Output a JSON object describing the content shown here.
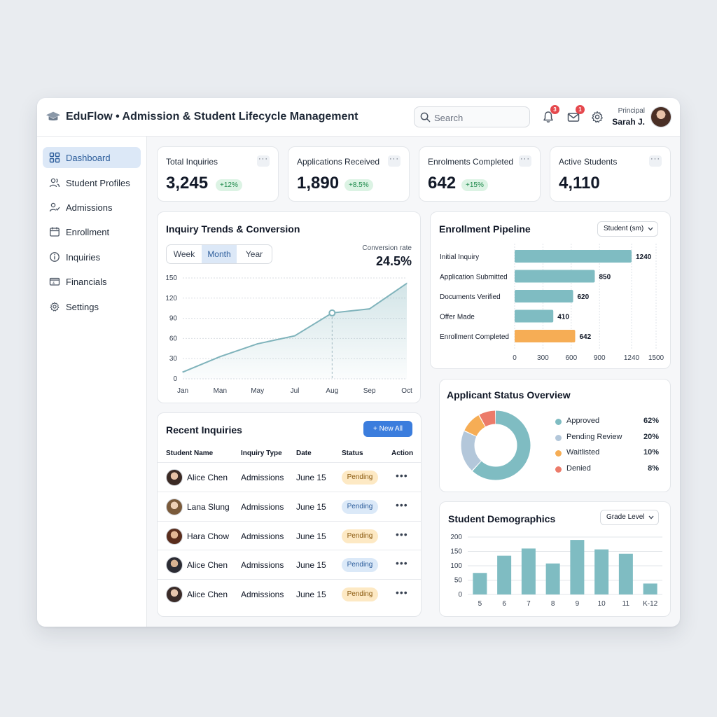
{
  "header": {
    "title": "EduFlow • Admission & Student Lifecycle Management",
    "search_placeholder": "Search",
    "notifications_count": "3",
    "messages_count": "1",
    "user_role": "Principal",
    "user_name": "Sarah J."
  },
  "sidebar": {
    "items": [
      {
        "label": "Dashboard",
        "icon": "grid-icon"
      },
      {
        "label": "Student Profiles",
        "icon": "users-icon"
      },
      {
        "label": "Admissions",
        "icon": "user-check-icon"
      },
      {
        "label": "Enrollment",
        "icon": "calendar-icon"
      },
      {
        "label": "Inquiries",
        "icon": "info-icon"
      },
      {
        "label": "Financials",
        "icon": "wallet-icon"
      },
      {
        "label": "Settings",
        "icon": "gear-icon"
      }
    ]
  },
  "kpis": [
    {
      "label": "Total Inquiries",
      "value": "3,245",
      "delta": "+12%"
    },
    {
      "label": "Applications Received",
      "value": "1,890",
      "delta": "+8.5%"
    },
    {
      "label": "Enrolments Completed",
      "value": "642",
      "delta": "+15%"
    },
    {
      "label": "Active Students",
      "value": "4,110",
      "delta": ""
    }
  ],
  "trends": {
    "title": "Inquiry Trends & Conversion",
    "tabs": [
      "Week",
      "Month",
      "Year"
    ],
    "active_tab": "Month",
    "conversion_label": "Conversion rate",
    "conversion_value": "24.5%"
  },
  "pipeline": {
    "title": "Enrollment Pipeline",
    "filter": "Student (sm)"
  },
  "status": {
    "title": "Applicant Status Overview"
  },
  "demographics": {
    "title": "Student Demographics",
    "filter": "Grade Level"
  },
  "inquiries": {
    "title": "Recent Inquiries",
    "new_button": "+ New All",
    "columns": [
      "Student Name",
      "Inquiry Type",
      "Date",
      "Status",
      "Action"
    ],
    "rows": [
      {
        "name": "Alice Chen",
        "type": "Admissions",
        "date": "June 15",
        "status": "Pending",
        "tone": "y"
      },
      {
        "name": "Lana Slung",
        "type": "Admissions",
        "date": "June 15",
        "status": "Pending",
        "tone": "b"
      },
      {
        "name": "Hara Chow",
        "type": "Admissions",
        "date": "June 15",
        "status": "Pending",
        "tone": "y"
      },
      {
        "name": "Alice Chen",
        "type": "Admissions",
        "date": "June 15",
        "status": "Pending",
        "tone": "b"
      },
      {
        "name": "Alice Chen",
        "type": "Admissions",
        "date": "June 15",
        "status": "Pending",
        "tone": "y"
      }
    ],
    "action_glyph": "•••"
  },
  "colors": {
    "accent": "#3b7ddd",
    "teal": "#7fbcc2",
    "pale_blue": "#b3c7da",
    "orange": "#f6ad55",
    "coral": "#ec7b6a",
    "line": "#7fb3bb"
  },
  "chart_data": [
    {
      "type": "area",
      "title": "Inquiry Trends & Conversion",
      "x": [
        "Jan",
        "Man",
        "May",
        "Jul",
        "Aug",
        "Sep",
        "Oct"
      ],
      "values": [
        10,
        33,
        52,
        64,
        98,
        104,
        142
      ],
      "ylim": [
        0,
        150
      ],
      "yticks": [
        0,
        30,
        60,
        90,
        120,
        150
      ],
      "highlight_index": 4,
      "grid": true
    },
    {
      "type": "bar",
      "orientation": "horizontal",
      "title": "Enrollment Pipeline",
      "categories": [
        "Initial Inquiry",
        "Application Submitted",
        "Documents Verified",
        "Offer Made",
        "Enrollment Completed"
      ],
      "values": [
        1240,
        850,
        620,
        410,
        642
      ],
      "highlight_index": 4,
      "xlim": [
        0,
        1500
      ],
      "xticks": [
        0,
        300,
        600,
        900,
        1240,
        1500
      ]
    },
    {
      "type": "pie",
      "title": "Applicant Status Overview",
      "labels": [
        "Approved",
        "Pending Review",
        "Waitlisted",
        "Denied"
      ],
      "values": [
        62,
        20,
        10,
        8
      ],
      "value_labels": [
        "62%",
        "20%",
        "10%",
        "8%"
      ]
    },
    {
      "type": "bar",
      "title": "Student Demographics",
      "categories": [
        "5",
        "6",
        "7",
        "8",
        "9",
        "10",
        "11",
        "K-12"
      ],
      "values": [
        75,
        135,
        160,
        108,
        190,
        157,
        142,
        38
      ],
      "ylim": [
        0,
        200
      ],
      "yticks": [
        0,
        50,
        100,
        150,
        200
      ]
    }
  ]
}
